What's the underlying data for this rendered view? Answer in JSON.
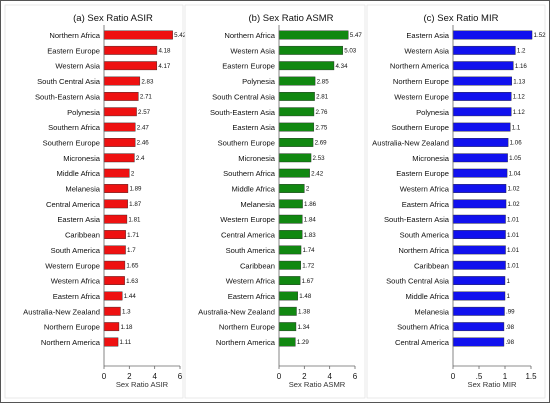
{
  "chart_data": [
    {
      "type": "bar",
      "orientation": "horizontal",
      "title": "(a) Sex Ratio ASIR",
      "xlabel": "Sex Ratio ASIR",
      "color": "#ee1111",
      "xlim": [
        0,
        6
      ],
      "xticks": [
        0,
        2,
        4,
        6
      ],
      "categories": [
        "Northern Africa",
        "Eastern Europe",
        "Western Asia",
        "South Central Asia",
        "South-Eastern Asia",
        "Polynesia",
        "Southern Africa",
        "Southern Europe",
        "Micronesia",
        "Middle Africa",
        "Melanesia",
        "Central America",
        "Eastern Asia",
        "Caribbean",
        "South America",
        "Western Europe",
        "Western Africa",
        "Eastern Africa",
        "Australia-New Zealand",
        "Northern Europe",
        "Northern America"
      ],
      "values": [
        5.42,
        4.18,
        4.17,
        2.83,
        2.71,
        2.57,
        2.47,
        2.46,
        2.4,
        2,
        1.89,
        1.87,
        1.81,
        1.71,
        1.7,
        1.65,
        1.63,
        1.44,
        1.3,
        1.18,
        1.11
      ],
      "value_labels": [
        "5.42",
        "4.18",
        "4.17",
        "2.83",
        "2.71",
        "2.57",
        "2.47",
        "2.46",
        "2.4",
        "2",
        "1.89",
        "1.87",
        "1.81",
        "1.71",
        "1.7",
        "1.65",
        "1.63",
        "1.44",
        "1.3",
        "1.18",
        "1.11"
      ]
    },
    {
      "type": "bar",
      "orientation": "horizontal",
      "title": "(b) Sex Ratio ASMR",
      "xlabel": "Sex Ratio ASMR",
      "color": "#118811",
      "xlim": [
        0,
        6
      ],
      "xticks": [
        0,
        2,
        4,
        6
      ],
      "categories": [
        "Northern Africa",
        "Western Asia",
        "Eastern Europe",
        "Polynesia",
        "South Central Asia",
        "South-Eastern Asia",
        "Eastern Asia",
        "Southern Europe",
        "Micronesia",
        "Southern Africa",
        "Middle Africa",
        "Melanesia",
        "Western Europe",
        "Central America",
        "South America",
        "Caribbean",
        "Western Africa",
        "Eastern Africa",
        "Australia-New Zealand",
        "Northern Europe",
        "Northern America"
      ],
      "values": [
        5.47,
        5.03,
        4.34,
        2.85,
        2.81,
        2.76,
        2.75,
        2.69,
        2.53,
        2.42,
        2,
        1.86,
        1.84,
        1.83,
        1.74,
        1.72,
        1.67,
        1.48,
        1.38,
        1.34,
        1.29
      ],
      "value_labels": [
        "5.47",
        "5.03",
        "4.34",
        "2.85",
        "2.81",
        "2.76",
        "2.75",
        "2.69",
        "2.53",
        "2.42",
        "2",
        "1.86",
        "1.84",
        "1.83",
        "1.74",
        "1.72",
        "1.67",
        "1.48",
        "1.38",
        "1.34",
        "1.29"
      ]
    },
    {
      "type": "bar",
      "orientation": "horizontal",
      "title": "(c) Sex Ratio MIR",
      "xlabel": "Sex Ratio MIR",
      "color": "#1111ee",
      "xlim": [
        0,
        1.5
      ],
      "xticks": [
        0,
        0.5,
        1,
        1.5
      ],
      "xtick_labels": [
        "0",
        ".5",
        "1",
        "1.5"
      ],
      "categories": [
        "Eastern Asia",
        "Western Asia",
        "Northern America",
        "Northern Europe",
        "Western Europe",
        "Polynesia",
        "Southern Europe",
        "Australia-New Zealand",
        "Micronesia",
        "Eastern Europe",
        "Western Africa",
        "Eastern Africa",
        "South-Eastern Asia",
        "South America",
        "Northern Africa",
        "Caribbean",
        "South Central Asia",
        "Middle Africa",
        "Melanesia",
        "Southern Africa",
        "Central America"
      ],
      "values": [
        1.52,
        1.2,
        1.16,
        1.13,
        1.12,
        1.12,
        1.1,
        1.06,
        1.05,
        1.04,
        1.02,
        1.02,
        1.01,
        1.01,
        1.01,
        1.01,
        1,
        1,
        0.99,
        0.98,
        0.98
      ],
      "value_labels": [
        "1.52",
        "1.2",
        "1.16",
        "1.13",
        "1.12",
        "1.12",
        "1.1",
        "1.06",
        "1.05",
        "1.04",
        "1.02",
        "1.02",
        "1.01",
        "1.01",
        "1.01",
        "1.01",
        "1",
        "1",
        ".99",
        ".98",
        ".98"
      ]
    }
  ]
}
